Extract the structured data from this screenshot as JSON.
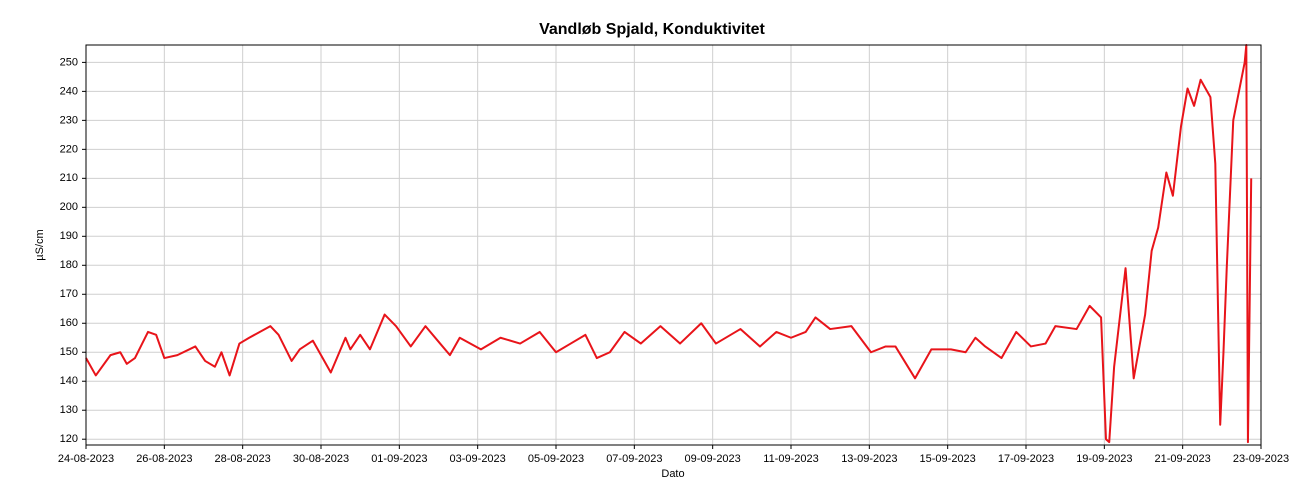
{
  "chart_data": {
    "type": "line",
    "title": "Vandløb Spjald, Konduktivitet",
    "x_label": "Dato",
    "y_label": "µS/cm",
    "grid": true,
    "xlim": [
      "24-08-2023",
      "23-09-2023"
    ],
    "xticks": [
      "24-08-2023",
      "26-08-2023",
      "28-08-2023",
      "30-08-2023",
      "01-09-2023",
      "03-09-2023",
      "05-09-2023",
      "07-09-2023",
      "09-09-2023",
      "11-09-2023",
      "13-09-2023",
      "15-09-2023",
      "17-09-2023",
      "19-09-2023",
      "21-09-2023",
      "23-09-2023"
    ],
    "ylim": [
      118,
      256
    ],
    "yticks": [
      120,
      130,
      140,
      150,
      160,
      170,
      180,
      190,
      200,
      210,
      220,
      230,
      240,
      250
    ],
    "x": [
      "24-08-2023 00:00",
      "24-08-2023 06:00",
      "24-08-2023 15:00",
      "24-08-2023 21:00",
      "25-08-2023 01:00",
      "25-08-2023 06:00",
      "25-08-2023 14:00",
      "25-08-2023 19:00",
      "26-08-2023 00:00",
      "26-08-2023 08:00",
      "26-08-2023 19:00",
      "27-08-2023 01:00",
      "27-08-2023 07:00",
      "27-08-2023 11:00",
      "27-08-2023 16:00",
      "27-08-2023 22:00",
      "28-08-2023 04:00",
      "28-08-2023 17:00",
      "28-08-2023 22:00",
      "29-08-2023 06:00",
      "29-08-2023 11:00",
      "29-08-2023 19:00",
      "30-08-2023 01:00",
      "30-08-2023 06:00",
      "30-08-2023 15:00",
      "30-08-2023 18:00",
      "31-08-2023 00:00",
      "31-08-2023 06:00",
      "31-08-2023 15:00",
      "31-08-2023 22:00",
      "01-09-2023 07:00",
      "01-09-2023 16:00",
      "02-09-2023 01:00",
      "02-09-2023 07:00",
      "02-09-2023 13:00",
      "03-09-2023 02:00",
      "03-09-2023 14:00",
      "04-09-2023 02:00",
      "04-09-2023 14:00",
      "05-09-2023 00:00",
      "05-09-2023 09:00",
      "05-09-2023 18:00",
      "06-09-2023 01:00",
      "06-09-2023 09:00",
      "06-09-2023 18:00",
      "07-09-2023 04:00",
      "07-09-2023 16:00",
      "08-09-2023 04:00",
      "08-09-2023 17:00",
      "09-09-2023 02:00",
      "09-09-2023 17:00",
      "10-09-2023 05:00",
      "10-09-2023 15:00",
      "11-09-2023 00:00",
      "11-09-2023 09:00",
      "11-09-2023 15:00",
      "12-09-2023 00:00",
      "12-09-2023 13:00",
      "13-09-2023 01:00",
      "13-09-2023 10:00",
      "13-09-2023 16:00",
      "14-09-2023 04:00",
      "14-09-2023 14:00",
      "15-09-2023 02:00",
      "15-09-2023 11:00",
      "15-09-2023 17:00",
      "15-09-2023 23:00",
      "16-09-2023 09:00",
      "16-09-2023 18:00",
      "17-09-2023 03:00",
      "17-09-2023 12:00",
      "17-09-2023 18:00",
      "18-09-2023 07:00",
      "18-09-2023 15:00",
      "18-09-2023 22:00",
      "19-09-2023 01:00",
      "19-09-2023 03:00",
      "19-09-2023 06:00",
      "19-09-2023 13:00",
      "19-09-2023 18:00",
      "20-09-2023 01:00",
      "20-09-2023 05:00",
      "20-09-2023 09:00",
      "20-09-2023 14:00",
      "20-09-2023 18:00",
      "20-09-2023 23:00",
      "21-09-2023 03:00",
      "21-09-2023 07:00",
      "21-09-2023 11:00",
      "21-09-2023 17:00",
      "21-09-2023 20:00",
      "21-09-2023 23:00",
      "22-09-2023 01:00",
      "22-09-2023 03:00",
      "22-09-2023 07:00",
      "22-09-2023 14:00",
      "22-09-2023 15:00",
      "22-09-2023 16:00",
      "22-09-2023 18:00"
    ],
    "series": [
      {
        "name": "Konduktivitet",
        "color": "#e8141a",
        "values": [
          148,
          142,
          149,
          150,
          146,
          148,
          157,
          156,
          148,
          149,
          152,
          147,
          145,
          150,
          142,
          153,
          155,
          159,
          156,
          147,
          151,
          154,
          148,
          143,
          155,
          151,
          156,
          151,
          163,
          159,
          152,
          159,
          153,
          149,
          155,
          151,
          155,
          153,
          157,
          150,
          153,
          156,
          148,
          150,
          157,
          153,
          159,
          153,
          160,
          153,
          158,
          152,
          157,
          155,
          157,
          162,
          158,
          159,
          150,
          152,
          152,
          141,
          151,
          151,
          150,
          155,
          152,
          148,
          157,
          152,
          153,
          159,
          158,
          166,
          162,
          120,
          119,
          145,
          179,
          141,
          163,
          185,
          193,
          212,
          204,
          228,
          241,
          235,
          244,
          238,
          215,
          125,
          150,
          179,
          230,
          250,
          256,
          119,
          210
        ]
      }
    ]
  }
}
